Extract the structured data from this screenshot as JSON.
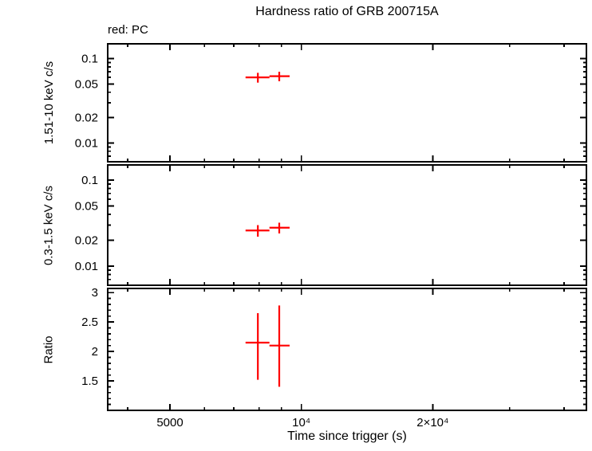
{
  "chart_data": {
    "type": "scatter",
    "title": "Hardness ratio of GRB 200715A",
    "annotation": "red: PC",
    "xlabel": "Time since trigger (s)",
    "xscale": "log",
    "xlim": [
      3600,
      45000
    ],
    "xticks": [
      {
        "value": 5000,
        "label": "5000"
      },
      {
        "value": 10000,
        "label": "10⁴"
      },
      {
        "value": 20000,
        "label": "2×10⁴"
      }
    ],
    "xminor": [
      4000,
      6000,
      7000,
      8000,
      9000,
      30000,
      40000
    ],
    "axis_color": "#000000",
    "panels": [
      {
        "name": "hard-band",
        "ylabel": "1.51-10 keV c/s",
        "yscale": "log",
        "ylim": [
          0.006,
          0.15
        ],
        "yticks": [
          {
            "value": 0.1,
            "label": "0.1"
          },
          {
            "value": 0.05,
            "label": "0.05"
          },
          {
            "value": 0.02,
            "label": "0.02"
          },
          {
            "value": 0.01,
            "label": "0.01"
          }
        ],
        "yminor": [
          0.007,
          0.008,
          0.009,
          0.03,
          0.04,
          0.06,
          0.07,
          0.08,
          0.09
        ],
        "series": [
          {
            "name": "PC",
            "color": "#ff0000",
            "points": [
              {
                "x": 7950,
                "xerr": [
                  500,
                  500
                ],
                "y": 0.06,
                "yerr": [
                  0.008,
                  0.008
                ]
              },
              {
                "x": 8900,
                "xerr": [
                  450,
                  500
                ],
                "y": 0.062,
                "yerr": [
                  0.008,
                  0.008
                ]
              }
            ]
          }
        ]
      },
      {
        "name": "soft-band",
        "ylabel": "0.3-1.5 keV c/s",
        "yscale": "log",
        "ylim": [
          0.006,
          0.15
        ],
        "yticks": [
          {
            "value": 0.1,
            "label": "0.1"
          },
          {
            "value": 0.05,
            "label": "0.05"
          },
          {
            "value": 0.02,
            "label": "0.02"
          },
          {
            "value": 0.01,
            "label": "0.01"
          }
        ],
        "yminor": [
          0.007,
          0.008,
          0.009,
          0.03,
          0.04,
          0.06,
          0.07,
          0.08,
          0.09
        ],
        "series": [
          {
            "name": "PC",
            "color": "#ff0000",
            "points": [
              {
                "x": 7950,
                "xerr": [
                  500,
                  500
                ],
                "y": 0.026,
                "yerr": [
                  0.004,
                  0.004
                ]
              },
              {
                "x": 8900,
                "xerr": [
                  450,
                  500
                ],
                "y": 0.028,
                "yerr": [
                  0.004,
                  0.004
                ]
              }
            ]
          }
        ]
      },
      {
        "name": "ratio",
        "ylabel": "Ratio",
        "yscale": "linear",
        "ylim": [
          1.0,
          3.07
        ],
        "yticks": [
          {
            "value": 3,
            "label": "3"
          },
          {
            "value": 2.5,
            "label": "2.5"
          },
          {
            "value": 2,
            "label": "2"
          },
          {
            "value": 1.5,
            "label": "1.5"
          }
        ],
        "yminor": [
          1.1,
          1.2,
          1.3,
          1.4,
          1.6,
          1.7,
          1.8,
          1.9,
          2.1,
          2.2,
          2.3,
          2.4,
          2.6,
          2.7,
          2.8,
          2.9
        ],
        "series": [
          {
            "name": "PC",
            "color": "#ff0000",
            "points": [
              {
                "x": 7950,
                "xerr": [
                  500,
                  500
                ],
                "y": 2.15,
                "yerr": [
                  0.63,
                  0.5
                ]
              },
              {
                "x": 8900,
                "xerr": [
                  450,
                  500
                ],
                "y": 2.1,
                "yerr": [
                  0.7,
                  0.68
                ]
              }
            ]
          }
        ]
      }
    ]
  }
}
